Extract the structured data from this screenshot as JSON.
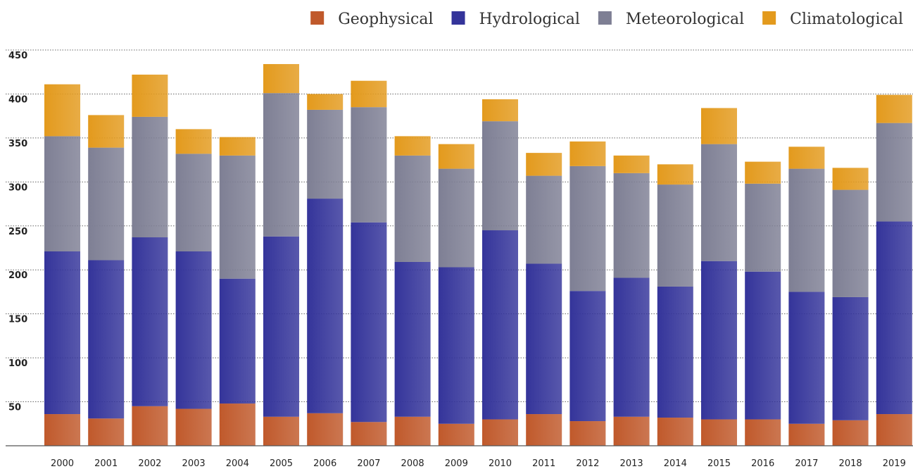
{
  "chart_data": {
    "type": "bar",
    "stacked": true,
    "title": "",
    "xlabel": "",
    "ylabel": "",
    "ylim": [
      0,
      450
    ],
    "yticks": [
      50,
      100,
      150,
      200,
      250,
      300,
      350,
      400,
      450
    ],
    "grid": "horizontal dotted",
    "legend_position": "top-right",
    "categories": [
      "2000",
      "2001",
      "2002",
      "2003",
      "2004",
      "2005",
      "2006",
      "2007",
      "2008",
      "2009",
      "2010",
      "2011",
      "2012",
      "2013",
      "2014",
      "2015",
      "2016",
      "2017",
      "2018",
      "2019"
    ],
    "series": [
      {
        "name": "Geophysical",
        "color": "#c0592b",
        "values": [
          36,
          31,
          45,
          42,
          48,
          33,
          37,
          27,
          33,
          25,
          30,
          36,
          28,
          33,
          32,
          30,
          30,
          25,
          29,
          36
        ]
      },
      {
        "name": "Hydrological",
        "color": "#34349a",
        "values": [
          185,
          180,
          192,
          179,
          142,
          205,
          244,
          227,
          176,
          178,
          215,
          171,
          148,
          158,
          149,
          180,
          168,
          150,
          140,
          219
        ]
      },
      {
        "name": "Meteorological",
        "color": "#7e7f94",
        "values": [
          131,
          128,
          137,
          111,
          140,
          163,
          101,
          131,
          121,
          112,
          124,
          100,
          142,
          119,
          116,
          133,
          100,
          140,
          122,
          112
        ]
      },
      {
        "name": "Climatological",
        "color": "#e39a1d",
        "values": [
          59,
          37,
          48,
          28,
          21,
          33,
          18,
          30,
          22,
          28,
          25,
          26,
          28,
          20,
          23,
          41,
          25,
          25,
          25,
          32
        ]
      }
    ]
  }
}
